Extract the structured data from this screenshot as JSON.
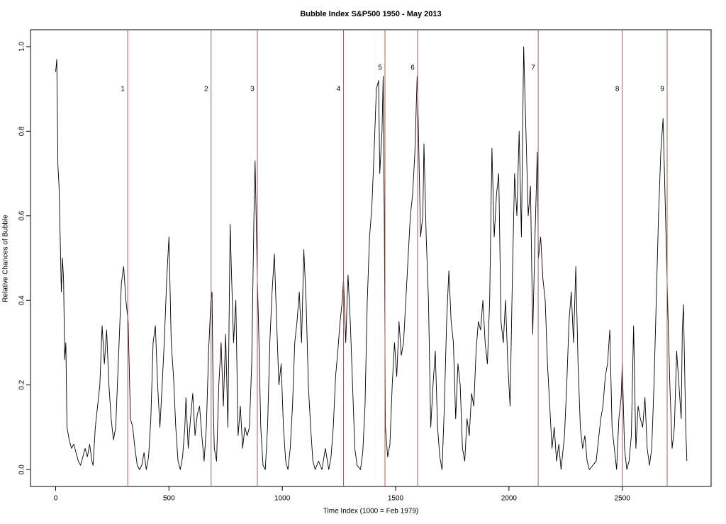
{
  "chart_data": {
    "type": "line",
    "title": "Bubble Index S&P500 1950 - May 2013",
    "x_label": "Time Index (1000 = Feb 1979)",
    "y_label": "Relative Chances of Bubble",
    "xlim": [
      -111,
      2892
    ],
    "ylim": [
      -0.04,
      1.04
    ],
    "xticks": [
      0,
      500,
      1000,
      1500,
      2000,
      2500
    ],
    "yticks": [
      {
        "value": 0,
        "label": "0.0"
      },
      0.2,
      0.4,
      0.6,
      0.8,
      {
        "value": 1,
        "label": "1.0"
      }
    ],
    "event_color": "#b05a5a",
    "events": [
      {
        "x": 318,
        "label": "1",
        "label_y": 0.9
      },
      {
        "x": 686,
        "label": "2",
        "label_y": 0.9
      },
      {
        "x": 890,
        "label": "3",
        "label_y": 0.9
      },
      {
        "x": 1270,
        "label": "4",
        "label_y": 0.9
      },
      {
        "x": 1453,
        "label": "5",
        "label_y": 0.95
      },
      {
        "x": 1597,
        "label": "6",
        "label_y": 0.95
      },
      {
        "x": 2129,
        "label": "7",
        "label_y": 0.95
      },
      {
        "x": 2500,
        "label": "8",
        "label_y": 0.9
      },
      {
        "x": 2698,
        "label": "9",
        "label_y": 0.9
      }
    ],
    "x": [
      0,
      5,
      10,
      15,
      20,
      25,
      30,
      35,
      40,
      45,
      50,
      60,
      70,
      80,
      90,
      100,
      110,
      120,
      130,
      140,
      150,
      160,
      165,
      175,
      185,
      195,
      205,
      215,
      225,
      235,
      245,
      255,
      265,
      280,
      290,
      300,
      310,
      320,
      330,
      340,
      350,
      360,
      370,
      380,
      390,
      400,
      410,
      420,
      430,
      440,
      450,
      460,
      470,
      480,
      490,
      500,
      510,
      520,
      530,
      540,
      550,
      560,
      570,
      575,
      585,
      595,
      605,
      615,
      625,
      635,
      645,
      655,
      665,
      675,
      685,
      690,
      695,
      700,
      710,
      720,
      730,
      740,
      750,
      760,
      770,
      775,
      785,
      795,
      805,
      815,
      825,
      835,
      845,
      855,
      865,
      875,
      880,
      890,
      895,
      905,
      915,
      925,
      935,
      945,
      955,
      965,
      975,
      985,
      995,
      1005,
      1015,
      1025,
      1035,
      1045,
      1055,
      1065,
      1075,
      1085,
      1095,
      1105,
      1115,
      1125,
      1135,
      1145,
      1160,
      1175,
      1190,
      1205,
      1215,
      1225,
      1235,
      1245,
      1255,
      1265,
      1270,
      1280,
      1290,
      1300,
      1310,
      1320,
      1330,
      1345,
      1355,
      1365,
      1375,
      1385,
      1395,
      1405,
      1415,
      1425,
      1430,
      1440,
      1445,
      1450,
      1455,
      1465,
      1475,
      1485,
      1495,
      1505,
      1515,
      1525,
      1535,
      1545,
      1555,
      1565,
      1575,
      1585,
      1595,
      1600,
      1610,
      1620,
      1625,
      1635,
      1645,
      1655,
      1665,
      1675,
      1685,
      1695,
      1705,
      1715,
      1725,
      1735,
      1745,
      1755,
      1765,
      1775,
      1785,
      1795,
      1805,
      1815,
      1825,
      1835,
      1845,
      1855,
      1865,
      1875,
      1885,
      1895,
      1905,
      1915,
      1925,
      1935,
      1945,
      1955,
      1965,
      1975,
      1985,
      1995,
      2005,
      2015,
      2025,
      2035,
      2045,
      2055,
      2065,
      2075,
      2085,
      2095,
      2105,
      2115,
      2125,
      2130,
      2140,
      2150,
      2160,
      2170,
      2180,
      2190,
      2200,
      2210,
      2220,
      2230,
      2245,
      2255,
      2265,
      2275,
      2285,
      2295,
      2305,
      2315,
      2325,
      2335,
      2345,
      2355,
      2370,
      2385,
      2395,
      2405,
      2415,
      2425,
      2435,
      2445,
      2455,
      2465,
      2475,
      2485,
      2495,
      2500,
      2510,
      2520,
      2530,
      2540,
      2550,
      2560,
      2570,
      2580,
      2590,
      2600,
      2610,
      2620,
      2630,
      2640,
      2650,
      2660,
      2670,
      2680,
      2690,
      2700,
      2710,
      2720,
      2730,
      2740,
      2750,
      2760,
      2765,
      2770,
      2780,
      2785
    ],
    "series": [
      {
        "color": "#000000",
        "values": [
          0.94,
          0.97,
          0.72,
          0.67,
          0.55,
          0.42,
          0.5,
          0.45,
          0.26,
          0.3,
          0.1,
          0.07,
          0.05,
          0.06,
          0.04,
          0.02,
          0.01,
          0.03,
          0.05,
          0.03,
          0.06,
          0.02,
          0.01,
          0.1,
          0.15,
          0.2,
          0.34,
          0.25,
          0.33,
          0.2,
          0.12,
          0.07,
          0.1,
          0.3,
          0.44,
          0.48,
          0.4,
          0.35,
          0.12,
          0.1,
          0.05,
          0.01,
          0,
          0.01,
          0.04,
          0,
          0.03,
          0.12,
          0.3,
          0.34,
          0.2,
          0.1,
          0.2,
          0.31,
          0.45,
          0.55,
          0.3,
          0.22,
          0.1,
          0.02,
          0,
          0.03,
          0.1,
          0.17,
          0.05,
          0.12,
          0.18,
          0.08,
          0.13,
          0.15,
          0.08,
          0.02,
          0.1,
          0.28,
          0.4,
          0.42,
          0.17,
          0.05,
          0.02,
          0.2,
          0.3,
          0.15,
          0.32,
          0.1,
          0.58,
          0.48,
          0.3,
          0.4,
          0.08,
          0.15,
          0.05,
          0.1,
          0.08,
          0.1,
          0.25,
          0.6,
          0.73,
          0.45,
          0.35,
          0.1,
          0.01,
          0,
          0.1,
          0.3,
          0.42,
          0.51,
          0.35,
          0.2,
          0.25,
          0.1,
          0.02,
          0,
          0.05,
          0.15,
          0.3,
          0.35,
          0.42,
          0.3,
          0.52,
          0.4,
          0.2,
          0.1,
          0.02,
          0,
          0.02,
          0,
          0.05,
          0,
          0.03,
          0.1,
          0.22,
          0.28,
          0.35,
          0.4,
          0.45,
          0.3,
          0.46,
          0.35,
          0.2,
          0.05,
          0.01,
          0,
          0.04,
          0.15,
          0.4,
          0.55,
          0.62,
          0.75,
          0.9,
          0.92,
          0.7,
          0.8,
          0.93,
          0.6,
          0.1,
          0.03,
          0.06,
          0.2,
          0.3,
          0.22,
          0.35,
          0.27,
          0.3,
          0.4,
          0.5,
          0.6,
          0.65,
          0.75,
          0.93,
          0.82,
          0.55,
          0.6,
          0.77,
          0.55,
          0.4,
          0.1,
          0.2,
          0.28,
          0.1,
          0.03,
          0,
          0.15,
          0.35,
          0.47,
          0.35,
          0.3,
          0.12,
          0.25,
          0.2,
          0.05,
          0.02,
          0.12,
          0.08,
          0.18,
          0.15,
          0.28,
          0.35,
          0.33,
          0.4,
          0.3,
          0.25,
          0.4,
          0.76,
          0.55,
          0.65,
          0.7,
          0.35,
          0.3,
          0.4,
          0.25,
          0.15,
          0.45,
          0.7,
          0.6,
          0.8,
          0.55,
          1.0,
          0.8,
          0.6,
          0.67,
          0.32,
          0.55,
          0.75,
          0.5,
          0.55,
          0.45,
          0.4,
          0.25,
          0.15,
          0.05,
          0.1,
          0.02,
          0.06,
          0,
          0.08,
          0.2,
          0.35,
          0.42,
          0.3,
          0.48,
          0.25,
          0.1,
          0.05,
          0.08,
          0.02,
          0,
          0.01,
          0.02,
          0.07,
          0.12,
          0.15,
          0.22,
          0.25,
          0.33,
          0.1,
          0.05,
          0,
          0.12,
          0.17,
          0.25,
          0.05,
          0,
          0.02,
          0.08,
          0.34,
          0.05,
          0.15,
          0.12,
          0.1,
          0.17,
          0.05,
          0.01,
          0.05,
          0.2,
          0.4,
          0.6,
          0.75,
          0.83,
          0.62,
          0.4,
          0.2,
          0.05,
          0.1,
          0.28,
          0.2,
          0.12,
          0.33,
          0.39,
          0.1,
          0.02
        ]
      }
    ]
  }
}
